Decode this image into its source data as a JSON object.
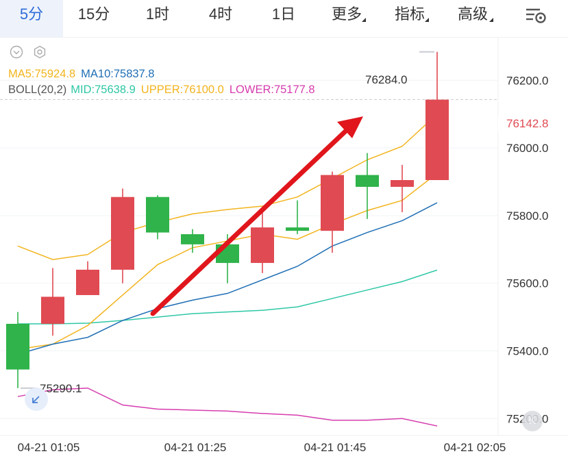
{
  "tabs": [
    {
      "label": "5分",
      "active": true
    },
    {
      "label": "15分",
      "active": false
    },
    {
      "label": "1时",
      "active": false
    },
    {
      "label": "4时",
      "active": false
    },
    {
      "label": "1日",
      "active": false
    },
    {
      "label": "更多",
      "active": false,
      "dropdown": true
    },
    {
      "label": "指标",
      "active": false,
      "dropdown": true
    },
    {
      "label": "高级",
      "active": false,
      "dropdown": true
    }
  ],
  "icons": {
    "settings": "chart-settings-icon",
    "collapse": "chevron-down-circle-icon",
    "indicator_settings": "gear-icon",
    "collapse_fab": "collapse-arrow-icon",
    "kline_button": "k-icon"
  },
  "indicators": {
    "ma5": "MA5:75924.8",
    "ma10": "MA10:75837.8",
    "boll": "BOLL(20,2)",
    "mid": "MID:75638.9",
    "upper": "UPPER:76100.0",
    "lower": "LOWER:75177.8"
  },
  "price_tag": "76142.8",
  "max_label": "76284.0",
  "min_label": "75290.1",
  "k_button_label": "K",
  "colors": {
    "up": "#e04a52",
    "down": "#2fb34a",
    "ma5": "#f2b41e",
    "ma10": "#1f6fb5",
    "mid": "#2ec7a6",
    "lower": "#d63cae",
    "accent": "#2f6bd8",
    "arrow": "#e0161c"
  },
  "chart_data": {
    "type": "candlestick",
    "y_axis": {
      "min": 75150,
      "max": 76320,
      "ticks": [
        "76200.0",
        "76000.0",
        "75800.0",
        "75600.0",
        "75400.0",
        "75200.0"
      ],
      "tick_values": [
        76200,
        76000,
        75800,
        75600,
        75400,
        75200
      ]
    },
    "x_axis": {
      "ticks": [
        "04-21 01:05",
        "04-21 01:25",
        "04-21 01:45",
        "04-21 02:05"
      ],
      "tick_index": [
        1,
        5,
        9,
        13
      ]
    },
    "candles": [
      {
        "o": 75480,
        "h": 75515,
        "l": 75290,
        "c": 75345
      },
      {
        "o": 75480,
        "h": 75645,
        "l": 75445,
        "c": 75560
      },
      {
        "o": 75565,
        "h": 75665,
        "l": 75565,
        "c": 75640
      },
      {
        "o": 75640,
        "h": 75880,
        "l": 75600,
        "c": 75855
      },
      {
        "o": 75855,
        "h": 75860,
        "l": 75730,
        "c": 75750
      },
      {
        "o": 75745,
        "h": 75760,
        "l": 75690,
        "c": 75715
      },
      {
        "o": 75715,
        "h": 75745,
        "l": 75600,
        "c": 75660
      },
      {
        "o": 75660,
        "h": 75815,
        "l": 75630,
        "c": 75765
      },
      {
        "o": 75765,
        "h": 75845,
        "l": 75745,
        "c": 75755
      },
      {
        "o": 75755,
        "h": 75930,
        "l": 75690,
        "c": 75920
      },
      {
        "o": 75920,
        "h": 75985,
        "l": 75790,
        "c": 75885
      },
      {
        "o": 75885,
        "h": 75950,
        "l": 75810,
        "c": 75905
      },
      {
        "o": 75905,
        "h": 76284,
        "l": 75905,
        "c": 76142.8
      }
    ],
    "ma5": [
      75405,
      75420,
      75475,
      75565,
      75655,
      75705,
      75725,
      75745,
      75730,
      75775,
      75815,
      75845,
      75925
    ],
    "ma10": [
      75390,
      75420,
      75440,
      75490,
      75525,
      75550,
      75570,
      75610,
      75650,
      75710,
      75750,
      75785,
      75838
    ],
    "boll_mid": [
      75480,
      75480,
      75482,
      75490,
      75500,
      75510,
      75515,
      75520,
      75530,
      75555,
      75580,
      75605,
      75639
    ],
    "boll_upper": [
      75710,
      75670,
      75685,
      75750,
      75780,
      75805,
      75818,
      75828,
      75855,
      75910,
      75965,
      76005,
      76100
    ],
    "boll_lower": [
      75265,
      75285,
      75290,
      75240,
      75228,
      75225,
      75222,
      75215,
      75210,
      75195,
      75195,
      75200,
      75178
    ]
  }
}
